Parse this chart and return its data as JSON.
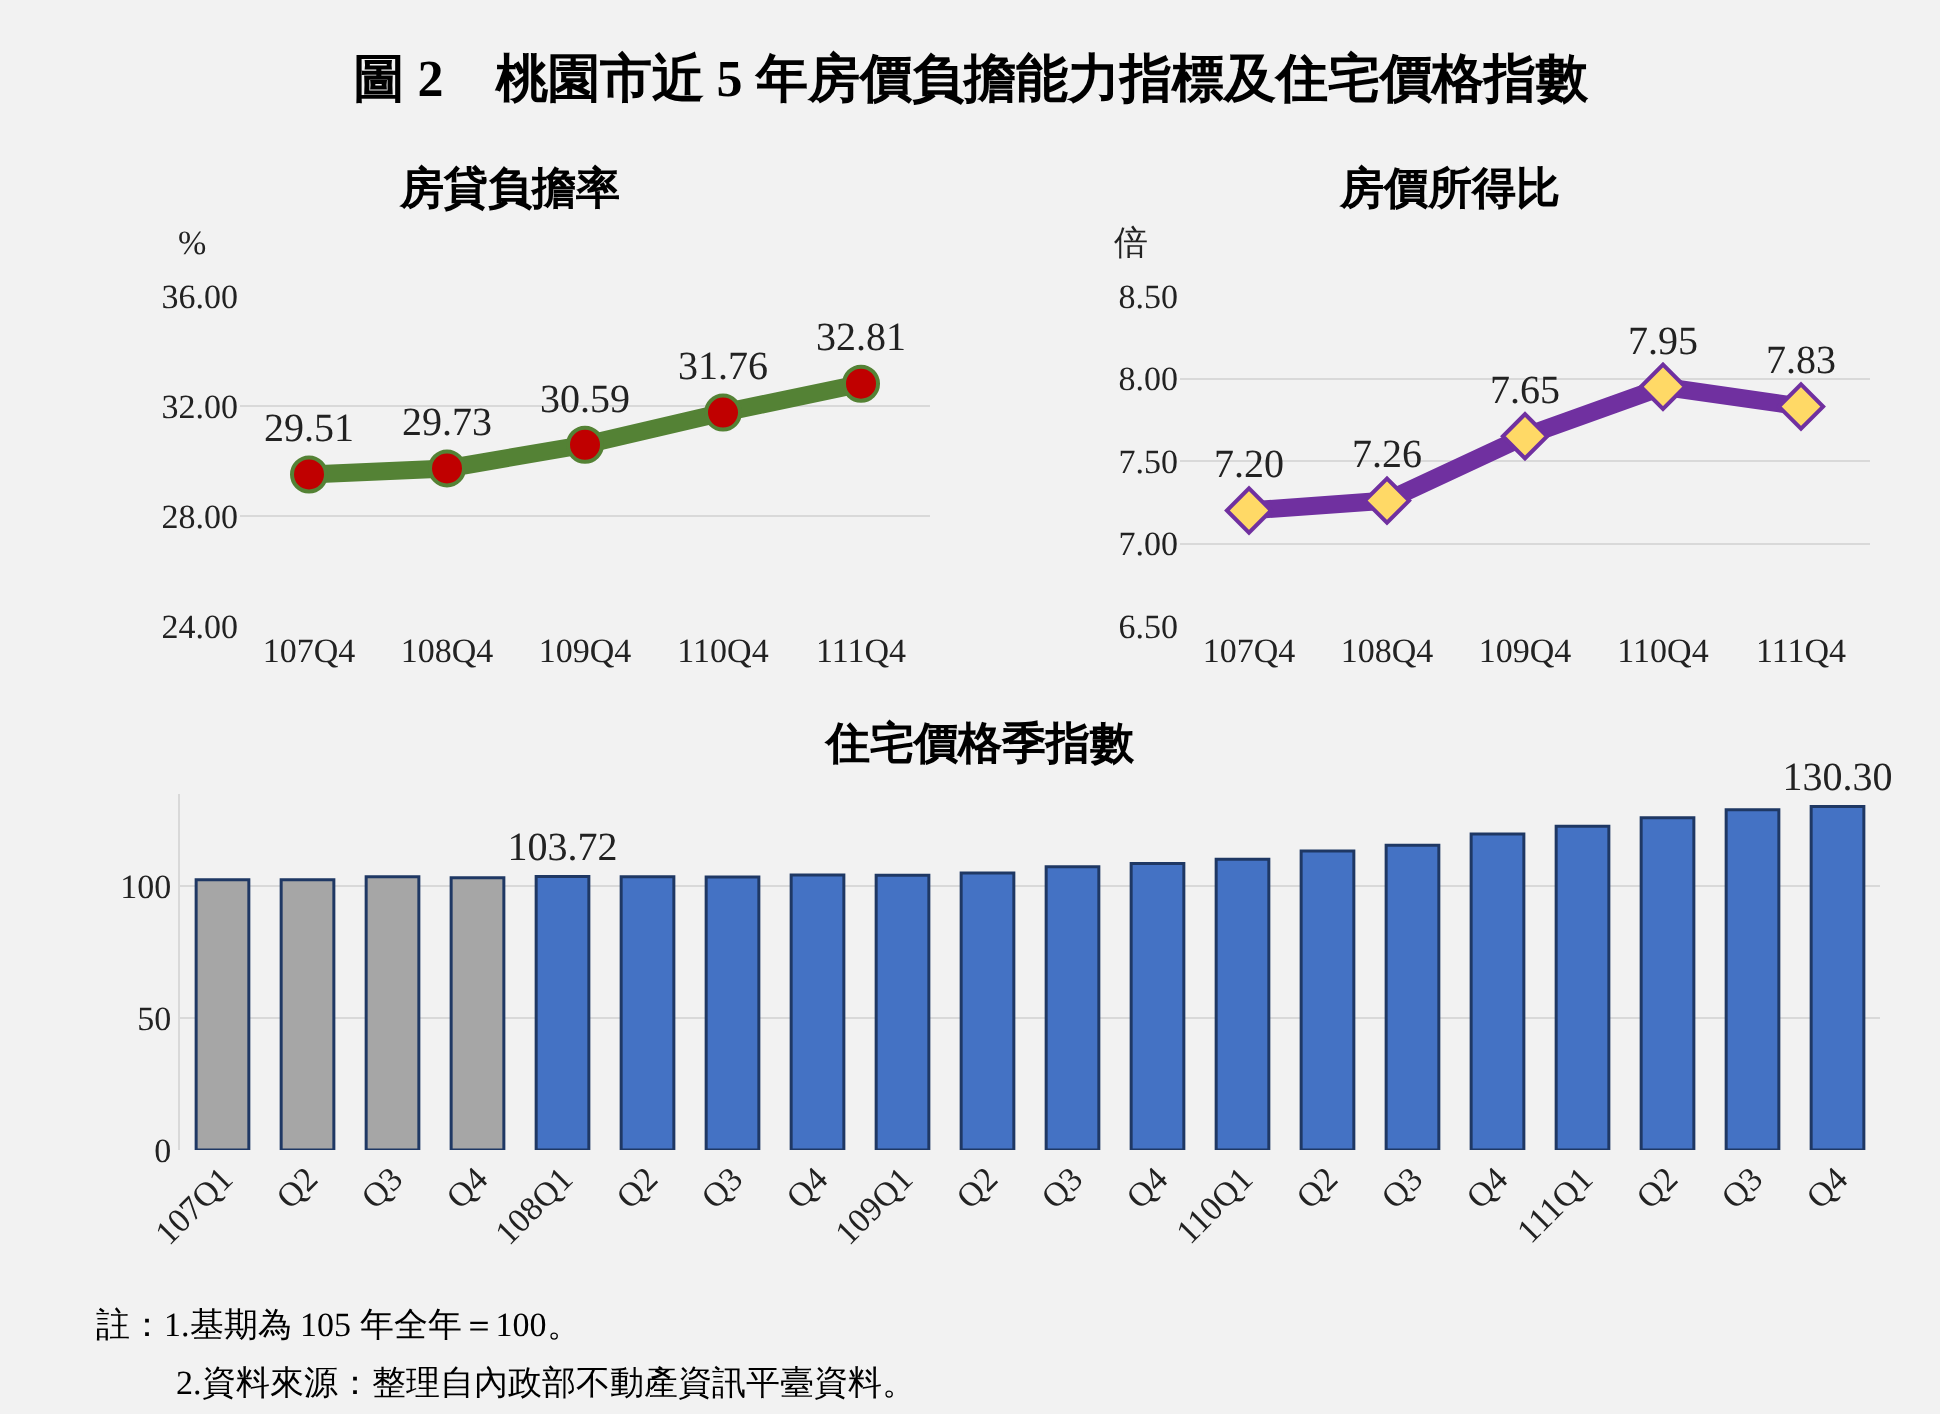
{
  "chart_data": [
    {
      "type": "line",
      "title": "房貸負擔率",
      "ylabel": "%",
      "annotations": [
        "圖 2　桃園市近 5 年房價負擔能力指標及住宅價格指數"
      ],
      "categories": [
        "107Q4",
        "108Q4",
        "109Q4",
        "110Q4",
        "111Q4"
      ],
      "series": [
        {
          "color": "#548235",
          "colors": [
            "#c00000",
            "#c00000",
            "#c00000",
            "#c00000",
            "#c00000"
          ],
          "values": [
            29.51,
            29.73,
            30.59,
            31.76,
            32.81
          ],
          "value_labels": [
            "29.51",
            "29.73",
            "30.59",
            "31.76",
            "32.81"
          ]
        }
      ],
      "ylim": [
        24,
        36
      ],
      "yticks": [
        {
          "value": 24,
          "label": "24.00"
        },
        {
          "value": 28,
          "label": "28.00"
        },
        {
          "value": 32,
          "label": "32.00"
        },
        {
          "value": 36,
          "label": "36.00"
        }
      ],
      "grid": "y",
      "marker": "circle",
      "line_style": "solid"
    },
    {
      "type": "line",
      "title": "房價所得比",
      "ylabel": "倍",
      "categories": [
        "107Q4",
        "108Q4",
        "109Q4",
        "110Q4",
        "111Q4"
      ],
      "series": [
        {
          "color": "#7030a0",
          "colors": [
            "#ffd966",
            "#ffd966",
            "#ffd966",
            "#ffd966",
            "#ffd966"
          ],
          "values": [
            7.2,
            7.26,
            7.65,
            7.95,
            7.83
          ],
          "value_labels": [
            "7.20",
            "7.26",
            "7.65",
            "7.95",
            "7.83"
          ]
        }
      ],
      "ylim": [
        6.5,
        8.5
      ],
      "yticks": [
        {
          "value": 6.5,
          "label": "6.50"
        },
        {
          "value": 7,
          "label": "7.00"
        },
        {
          "value": 7.5,
          "label": "7.50"
        },
        {
          "value": 8,
          "label": "8.00"
        },
        {
          "value": 8.5,
          "label": "8.50"
        }
      ],
      "grid": "y",
      "marker": "diamond",
      "line_style": "solid"
    },
    {
      "type": "bar",
      "title": "住宅價格季指數",
      "annotations": [
        "註：1.基期為 105 年全年＝100。",
        "2.資料來源：整理自內政部不動產資訊平臺資料。"
      ],
      "categories": [
        "107Q1",
        "Q2",
        "Q3",
        "Q4",
        "108Q1",
        "Q2",
        "Q3",
        "Q4",
        "109Q1",
        "Q2",
        "Q3",
        "Q4",
        "110Q1",
        "Q2",
        "Q3",
        "Q4",
        "111Q1",
        "Q2",
        "Q3",
        "Q4"
      ],
      "values": [
        102.5,
        102.5,
        103.6,
        103.2,
        103.72,
        103.6,
        103.5,
        104.3,
        104.2,
        105.0,
        107.4,
        108.6,
        110.3,
        113.4,
        115.6,
        119.8,
        122.8,
        126.0,
        129.0,
        130.3
      ],
      "colors": [
        "#a6a6a6",
        "#a6a6a6",
        "#a6a6a6",
        "#a6a6a6",
        "#4472c4",
        "#4472c4",
        "#4472c4",
        "#4472c4",
        "#4472c4",
        "#4472c4",
        "#4472c4",
        "#4472c4",
        "#4472c4",
        "#4472c4",
        "#4472c4",
        "#4472c4",
        "#4472c4",
        "#4472c4",
        "#4472c4",
        "#4472c4"
      ],
      "value_labels": [
        null,
        null,
        null,
        null,
        "103.72",
        null,
        null,
        null,
        null,
        null,
        null,
        null,
        null,
        null,
        null,
        null,
        null,
        null,
        null,
        "130.30"
      ],
      "ylim": [
        0,
        135
      ],
      "yticks": [
        0,
        50,
        100
      ],
      "grid": "y"
    }
  ]
}
